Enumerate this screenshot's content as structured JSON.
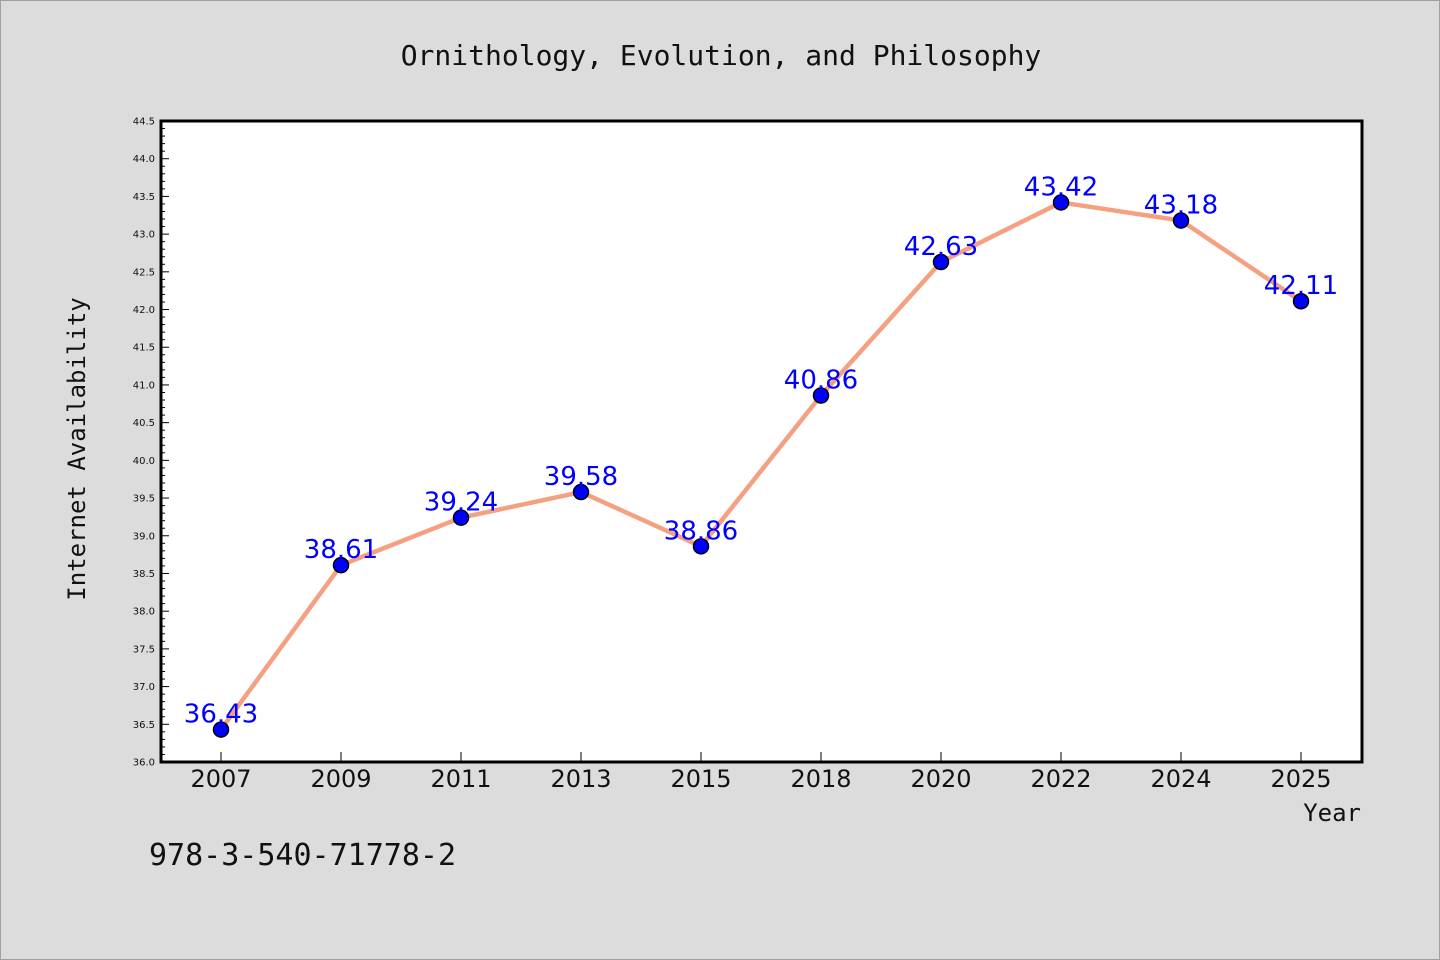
{
  "chart_data": {
    "type": "line",
    "title": "Ornithology, Evolution, and Philosophy",
    "xlabel": "Year",
    "ylabel": "Internet Availability",
    "categories": [
      "2007",
      "2009",
      "2011",
      "2013",
      "2015",
      "2018",
      "2020",
      "2022",
      "2024",
      "2025"
    ],
    "series": [
      {
        "values": [
          36.43,
          38.61,
          39.24,
          39.58,
          38.86,
          40.86,
          42.63,
          43.42,
          43.18,
          42.11
        ],
        "data_labels": [
          "36.43",
          "38.61",
          "39.24",
          "39.58",
          "38.86",
          "40.86",
          "42.63",
          "43.42",
          "43.18",
          "42.11"
        ]
      }
    ],
    "ylim": [
      36.0,
      44.5
    ],
    "yticks": [
      "36.0",
      "36.5",
      "37.0",
      "37.5",
      "38.0",
      "38.5",
      "39.0",
      "39.5",
      "40.0",
      "40.5",
      "41.0",
      "41.5",
      "42.0",
      "42.5",
      "43.0",
      "43.5",
      "44.0",
      "44.5"
    ],
    "grid": false,
    "annotation": "978-3-540-71778-2",
    "colors": {
      "line": "#f4a081",
      "marker": "#0000ff",
      "data_label": "#0000ff",
      "background": "#dcdcdc",
      "plot_background": "#ffffff",
      "axis": "#000000"
    }
  }
}
